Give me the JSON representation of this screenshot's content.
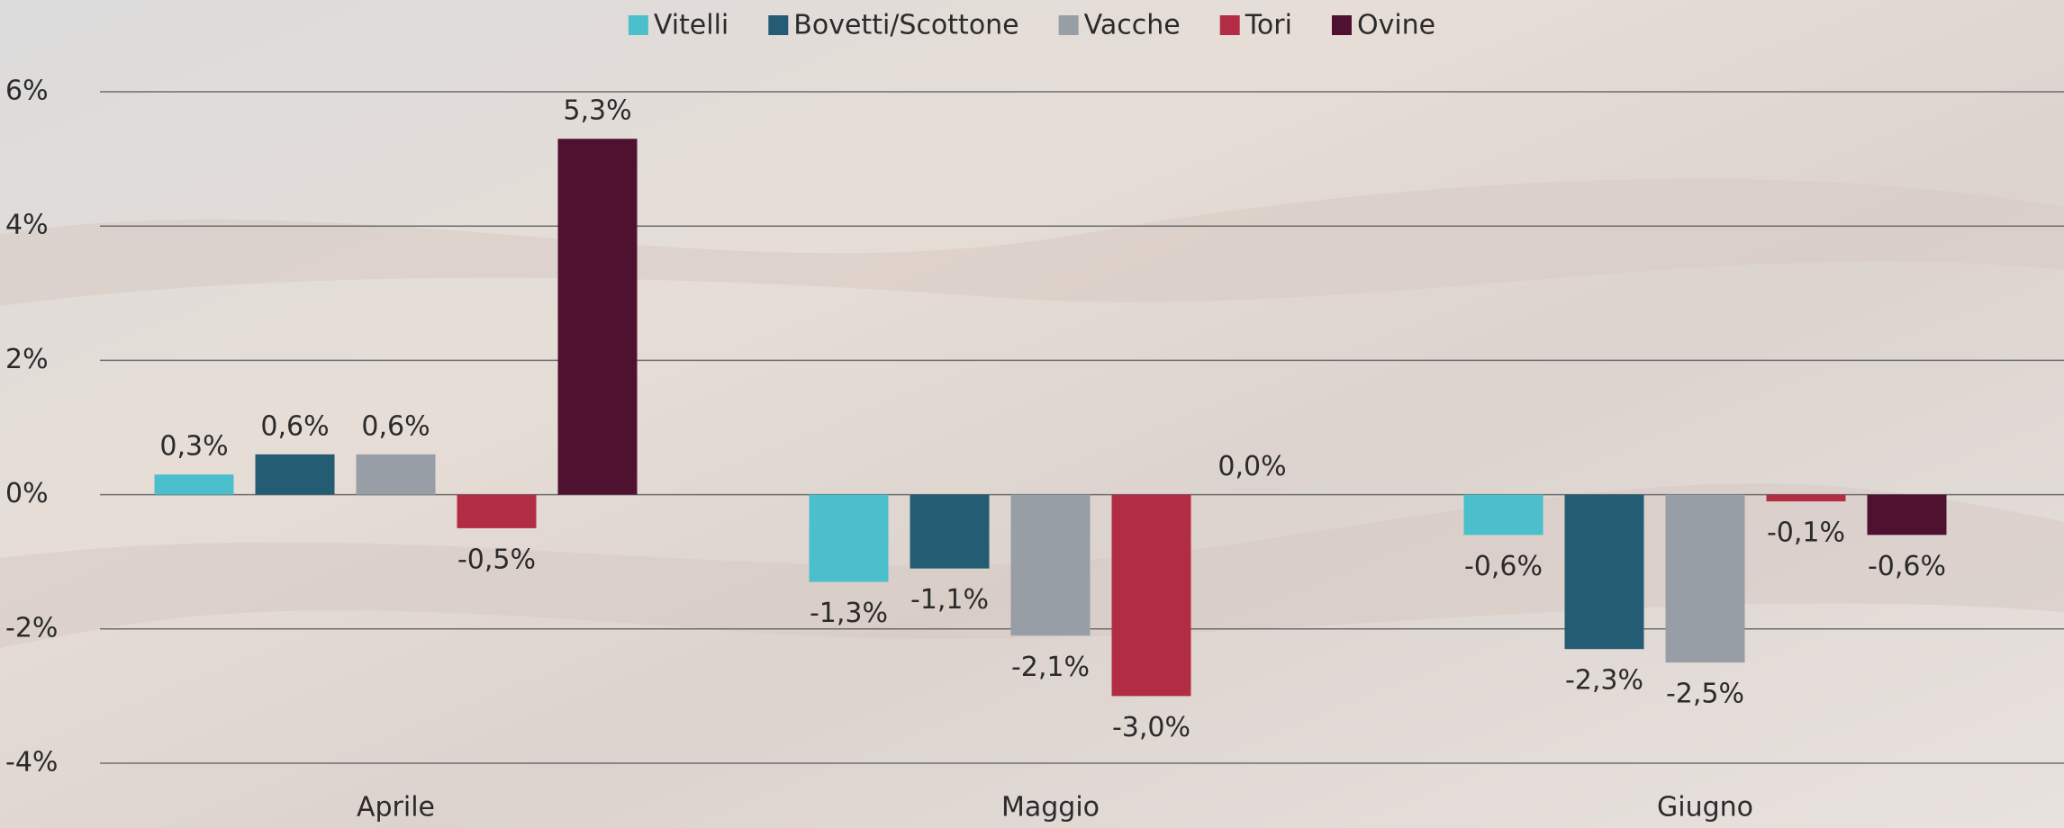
{
  "chart_data": {
    "type": "bar",
    "categories": [
      "Aprile",
      "Maggio",
      "Giugno"
    ],
    "series": [
      {
        "name": "Vitelli",
        "color": "#4bbfcc",
        "values": [
          0.3,
          -1.3,
          -0.6
        ],
        "value_labels": [
          "0,3%",
          "-1,3%",
          "-0,6%"
        ]
      },
      {
        "name": "Bovetti/Scottone",
        "color": "#245d73",
        "values": [
          0.6,
          -1.1,
          -2.3
        ],
        "value_labels": [
          "0,6%",
          "-1,1%",
          "-2,3%"
        ]
      },
      {
        "name": "Vacche",
        "color": "#979ea6",
        "values": [
          0.6,
          -2.1,
          -2.5
        ],
        "value_labels": [
          "0,6%",
          "-2,1%",
          "-2,5%"
        ]
      },
      {
        "name": "Tori",
        "color": "#b22c44",
        "values": [
          -0.5,
          -3.0,
          -0.1
        ],
        "value_labels": [
          "-0,5%",
          "-3,0%",
          "-0,1%"
        ]
      },
      {
        "name": "Ovine",
        "color": "#4e1230",
        "values": [
          5.3,
          0.0,
          -0.6
        ],
        "value_labels": [
          "5,3%",
          "0,0%",
          "-0,6%"
        ]
      }
    ],
    "ylim": [
      -4,
      6
    ],
    "yticks": [
      {
        "value": -4,
        "label": "-4%"
      },
      {
        "value": -2,
        "label": "-2%"
      },
      {
        "value": 0,
        "label": "0%"
      },
      {
        "value": 2,
        "label": "2%"
      },
      {
        "value": 4,
        "label": "4%"
      },
      {
        "value": 6,
        "label": "6%"
      }
    ],
    "grid": true,
    "legend": "top"
  }
}
